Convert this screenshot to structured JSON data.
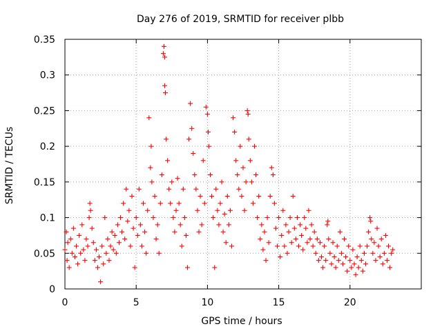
{
  "chart_data": {
    "type": "scatter",
    "title": "Day 276 of 2019, SRMTID for receiver plbb",
    "xlabel": "GPS time / hours",
    "ylabel": "SRMTID / TECUs",
    "xlim": [
      0,
      25
    ],
    "ylim": [
      0,
      0.35
    ],
    "x_ticks": [
      0,
      5,
      10,
      15,
      20
    ],
    "x_tick_labels": [
      "0",
      "5",
      "10",
      "15",
      "20"
    ],
    "y_ticks": [
      0,
      0.05,
      0.1,
      0.15,
      0.2,
      0.25,
      0.3,
      0.35
    ],
    "y_tick_labels": [
      "0",
      "0.05",
      "0.1",
      "0.15",
      "0.2",
      "0.25",
      "0.3",
      "0.35"
    ],
    "grid": true,
    "marker": "+",
    "color": "#ff0000",
    "series": [
      {
        "name": "SRMTID",
        "points": [
          [
            0.0,
            0.055
          ],
          [
            0.1,
            0.08
          ],
          [
            0.15,
            0.04
          ],
          [
            0.2,
            0.065
          ],
          [
            0.3,
            0.03
          ],
          [
            0.4,
            0.07
          ],
          [
            0.5,
            0.05
          ],
          [
            0.6,
            0.085
          ],
          [
            0.7,
            0.045
          ],
          [
            0.8,
            0.06
          ],
          [
            0.9,
            0.035
          ],
          [
            1.0,
            0.075
          ],
          [
            1.1,
            0.05
          ],
          [
            1.2,
            0.09
          ],
          [
            1.3,
            0.055
          ],
          [
            1.4,
            0.04
          ],
          [
            1.5,
            0.07
          ],
          [
            1.6,
            0.06
          ],
          [
            1.7,
            0.1
          ],
          [
            1.75,
            0.12
          ],
          [
            1.8,
            0.11
          ],
          [
            1.9,
            0.085
          ],
          [
            2.0,
            0.065
          ],
          [
            2.1,
            0.04
          ],
          [
            2.2,
            0.055
          ],
          [
            2.3,
            0.03
          ],
          [
            2.4,
            0.045
          ],
          [
            2.5,
            0.01
          ],
          [
            2.6,
            0.06
          ],
          [
            2.7,
            0.035
          ],
          [
            2.8,
            0.1
          ],
          [
            2.9,
            0.05
          ],
          [
            3.0,
            0.07
          ],
          [
            3.1,
            0.04
          ],
          [
            3.2,
            0.06
          ],
          [
            3.3,
            0.08
          ],
          [
            3.4,
            0.055
          ],
          [
            3.5,
            0.075
          ],
          [
            3.6,
            0.05
          ],
          [
            3.7,
            0.09
          ],
          [
            3.8,
            0.065
          ],
          [
            3.9,
            0.1
          ],
          [
            4.0,
            0.08
          ],
          [
            4.1,
            0.12
          ],
          [
            4.2,
            0.07
          ],
          [
            4.3,
            0.14
          ],
          [
            4.4,
            0.095
          ],
          [
            4.5,
            0.11
          ],
          [
            4.6,
            0.06
          ],
          [
            4.7,
            0.13
          ],
          [
            4.8,
            0.085
          ],
          [
            4.9,
            0.03
          ],
          [
            5.0,
            0.1
          ],
          [
            5.1,
            0.075
          ],
          [
            5.2,
            0.14
          ],
          [
            5.3,
            0.09
          ],
          [
            5.4,
            0.06
          ],
          [
            5.5,
            0.12
          ],
          [
            5.6,
            0.08
          ],
          [
            5.7,
            0.05
          ],
          [
            5.8,
            0.11
          ],
          [
            5.9,
            0.24
          ],
          [
            6.0,
            0.17
          ],
          [
            6.05,
            0.2
          ],
          [
            6.1,
            0.15
          ],
          [
            6.2,
            0.1
          ],
          [
            6.3,
            0.13
          ],
          [
            6.4,
            0.07
          ],
          [
            6.5,
            0.09
          ],
          [
            6.6,
            0.05
          ],
          [
            6.7,
            0.12
          ],
          [
            6.8,
            0.16
          ],
          [
            6.9,
            0.33
          ],
          [
            6.95,
            0.34
          ],
          [
            7.0,
            0.325
          ],
          [
            7.0,
            0.285
          ],
          [
            7.05,
            0.275
          ],
          [
            7.1,
            0.21
          ],
          [
            7.2,
            0.18
          ],
          [
            7.3,
            0.14
          ],
          [
            7.4,
            0.12
          ],
          [
            7.5,
            0.15
          ],
          [
            7.6,
            0.1
          ],
          [
            7.7,
            0.08
          ],
          [
            7.8,
            0.11
          ],
          [
            7.9,
            0.155
          ],
          [
            8.0,
            0.12
          ],
          [
            8.1,
            0.09
          ],
          [
            8.2,
            0.06
          ],
          [
            8.3,
            0.14
          ],
          [
            8.4,
            0.1
          ],
          [
            8.5,
            0.075
          ],
          [
            8.6,
            0.03
          ],
          [
            8.7,
            0.21
          ],
          [
            8.8,
            0.26
          ],
          [
            8.9,
            0.225
          ],
          [
            9.0,
            0.19
          ],
          [
            9.1,
            0.16
          ],
          [
            9.2,
            0.14
          ],
          [
            9.3,
            0.11
          ],
          [
            9.4,
            0.08
          ],
          [
            9.5,
            0.13
          ],
          [
            9.6,
            0.09
          ],
          [
            9.7,
            0.18
          ],
          [
            9.8,
            0.12
          ],
          [
            9.9,
            0.255
          ],
          [
            10.0,
            0.245
          ],
          [
            10.05,
            0.22
          ],
          [
            10.1,
            0.2
          ],
          [
            10.2,
            0.16
          ],
          [
            10.3,
            0.13
          ],
          [
            10.4,
            0.1
          ],
          [
            10.5,
            0.03
          ],
          [
            10.6,
            0.14
          ],
          [
            10.7,
            0.11
          ],
          [
            10.8,
            0.09
          ],
          [
            10.9,
            0.12
          ],
          [
            11.0,
            0.15
          ],
          [
            11.1,
            0.08
          ],
          [
            11.2,
            0.105
          ],
          [
            11.3,
            0.065
          ],
          [
            11.4,
            0.13
          ],
          [
            11.5,
            0.09
          ],
          [
            11.6,
            0.11
          ],
          [
            11.7,
            0.06
          ],
          [
            11.8,
            0.24
          ],
          [
            11.9,
            0.22
          ],
          [
            12.0,
            0.18
          ],
          [
            12.1,
            0.16
          ],
          [
            12.2,
            0.14
          ],
          [
            12.3,
            0.2
          ],
          [
            12.4,
            0.13
          ],
          [
            12.5,
            0.17
          ],
          [
            12.6,
            0.11
          ],
          [
            12.7,
            0.15
          ],
          [
            12.8,
            0.25
          ],
          [
            12.85,
            0.245
          ],
          [
            12.9,
            0.21
          ],
          [
            13.0,
            0.18
          ],
          [
            13.1,
            0.15
          ],
          [
            13.2,
            0.12
          ],
          [
            13.3,
            0.2
          ],
          [
            13.4,
            0.16
          ],
          [
            13.5,
            0.1
          ],
          [
            13.6,
            0.13
          ],
          [
            13.7,
            0.07
          ],
          [
            13.8,
            0.09
          ],
          [
            13.9,
            0.055
          ],
          [
            14.0,
            0.08
          ],
          [
            14.1,
            0.04
          ],
          [
            14.2,
            0.1
          ],
          [
            14.3,
            0.065
          ],
          [
            14.4,
            0.13
          ],
          [
            14.5,
            0.17
          ],
          [
            14.6,
            0.16
          ],
          [
            14.7,
            0.12
          ],
          [
            14.8,
            0.085
          ],
          [
            14.9,
            0.06
          ],
          [
            15.0,
            0.1
          ],
          [
            15.1,
            0.045
          ],
          [
            15.2,
            0.075
          ],
          [
            15.3,
            0.11
          ],
          [
            15.4,
            0.06
          ],
          [
            15.5,
            0.09
          ],
          [
            15.6,
            0.05
          ],
          [
            15.7,
            0.08
          ],
          [
            15.8,
            0.1
          ],
          [
            15.9,
            0.065
          ],
          [
            16.0,
            0.13
          ],
          [
            16.1,
            0.085
          ],
          [
            16.2,
            0.07
          ],
          [
            16.3,
            0.1
          ],
          [
            16.4,
            0.06
          ],
          [
            16.5,
            0.09
          ],
          [
            16.6,
            0.075
          ],
          [
            16.7,
            0.055
          ],
          [
            16.8,
            0.1
          ],
          [
            16.9,
            0.085
          ],
          [
            17.0,
            0.065
          ],
          [
            17.1,
            0.11
          ],
          [
            17.2,
            0.07
          ],
          [
            17.3,
            0.09
          ],
          [
            17.4,
            0.06
          ],
          [
            17.5,
            0.08
          ],
          [
            17.6,
            0.05
          ],
          [
            17.7,
            0.07
          ],
          [
            17.8,
            0.04
          ],
          [
            17.9,
            0.065
          ],
          [
            18.0,
            0.045
          ],
          [
            18.1,
            0.03
          ],
          [
            18.2,
            0.06
          ],
          [
            18.3,
            0.04
          ],
          [
            18.4,
            0.09
          ],
          [
            18.45,
            0.095
          ],
          [
            18.5,
            0.07
          ],
          [
            18.6,
            0.05
          ],
          [
            18.7,
            0.035
          ],
          [
            18.8,
            0.065
          ],
          [
            18.9,
            0.045
          ],
          [
            19.0,
            0.03
          ],
          [
            19.1,
            0.06
          ],
          [
            19.2,
            0.04
          ],
          [
            19.3,
            0.08
          ],
          [
            19.4,
            0.05
          ],
          [
            19.5,
            0.035
          ],
          [
            19.6,
            0.07
          ],
          [
            19.7,
            0.045
          ],
          [
            19.8,
            0.025
          ],
          [
            19.9,
            0.06
          ],
          [
            20.0,
            0.04
          ],
          [
            20.1,
            0.03
          ],
          [
            20.2,
            0.055
          ],
          [
            20.3,
            0.035
          ],
          [
            20.4,
            0.02
          ],
          [
            20.5,
            0.045
          ],
          [
            20.6,
            0.03
          ],
          [
            20.7,
            0.06
          ],
          [
            20.8,
            0.04
          ],
          [
            20.9,
            0.025
          ],
          [
            21.0,
            0.05
          ],
          [
            21.1,
            0.035
          ],
          [
            21.2,
            0.06
          ],
          [
            21.3,
            0.08
          ],
          [
            21.4,
            0.1
          ],
          [
            21.45,
            0.095
          ],
          [
            21.5,
            0.07
          ],
          [
            21.6,
            0.05
          ],
          [
            21.7,
            0.065
          ],
          [
            21.8,
            0.04
          ],
          [
            21.9,
            0.085
          ],
          [
            22.0,
            0.06
          ],
          [
            22.1,
            0.045
          ],
          [
            22.2,
            0.07
          ],
          [
            22.3,
            0.035
          ],
          [
            22.4,
            0.05
          ],
          [
            22.5,
            0.075
          ],
          [
            22.6,
            0.04
          ],
          [
            22.7,
            0.06
          ],
          [
            22.8,
            0.03
          ],
          [
            22.9,
            0.05
          ],
          [
            23.0,
            0.055
          ]
        ]
      }
    ]
  }
}
